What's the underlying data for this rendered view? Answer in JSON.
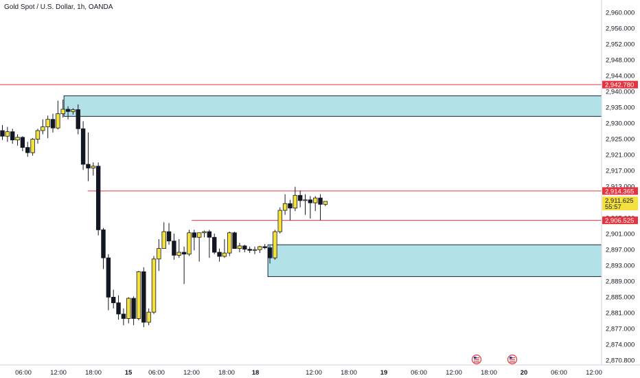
{
  "header": {
    "title": "Gold Spot / U.S. Dollar, 1h, OANDA"
  },
  "colors": {
    "background": "#ffffff",
    "bull_candle": "#f5e13d",
    "bear_candle": "#131722",
    "wick": "#131722",
    "level_line": "#e5333f",
    "zone_fill": "#b2e1e8",
    "zone_border": "#1b2430",
    "axis_text": "#131722",
    "price_label_bg": "#f5e13d"
  },
  "chart_data": {
    "type": "candlestick",
    "title": "Gold Spot / U.S. Dollar, 1h, OANDA",
    "y_axis": {
      "range": [
        2869.0,
        2963.0
      ],
      "ticks": [
        "2,960.000",
        "2,956.000",
        "2,952.000",
        "2,948.000",
        "2,944.000",
        "2,940.000",
        "2,935.000",
        "2,930.000",
        "2,925.000",
        "2,921.000",
        "2,917.000",
        "2,913.000",
        "2,909.000",
        "2,905.000",
        "2,901.000",
        "2,897.000",
        "2,893.000",
        "2,889.000",
        "2,885.000",
        "2,881.000",
        "2,877.000",
        "2,874.000",
        "2,870.800"
      ]
    },
    "x_axis": {
      "ticks": [
        "06:00",
        "12:00",
        "18:00",
        "15",
        "06:00",
        "12:00",
        "18:00",
        "18",
        "12:00",
        "18:00",
        "19",
        "06:00",
        "12:00",
        "18:00",
        "20",
        "06:00",
        "12:00"
      ],
      "bold_ticks": [
        "15",
        "18",
        "19",
        "20"
      ]
    },
    "candles": [
      [
        2930.5,
        2932.0,
        2928.0,
        2929.0
      ],
      [
        2929.0,
        2931.5,
        2927.5,
        2930.2
      ],
      [
        2930.2,
        2931.0,
        2927.0,
        2928.0
      ],
      [
        2928.0,
        2929.5,
        2926.5,
        2928.7
      ],
      [
        2928.7,
        2929.0,
        2925.0,
        2926.0
      ],
      [
        2926.0,
        2927.5,
        2923.5,
        2924.6
      ],
      [
        2924.6,
        2928.5,
        2923.8,
        2928.2
      ],
      [
        2928.2,
        2931.0,
        2927.0,
        2930.5
      ],
      [
        2930.5,
        2933.5,
        2929.5,
        2931.5
      ],
      [
        2931.5,
        2934.5,
        2928.5,
        2933.5
      ],
      [
        2933.5,
        2935.0,
        2930.0,
        2931.2
      ],
      [
        2931.2,
        2938.5,
        2930.8,
        2935.0
      ],
      [
        2935.0,
        2938.8,
        2934.0,
        2936.2
      ],
      [
        2936.2,
        2937.0,
        2933.5,
        2935.6
      ],
      [
        2935.6,
        2936.5,
        2934.8,
        2936.1
      ],
      [
        2936.1,
        2937.5,
        2929.5,
        2931.0
      ],
      [
        2931.0,
        2933.0,
        2920.0,
        2921.5
      ],
      [
        2921.5,
        2930.0,
        2917.0,
        2920.5
      ],
      [
        2920.5,
        2922.0,
        2918.5,
        2921.0
      ],
      [
        2921.0,
        2922.0,
        2902.5,
        2904.0
      ],
      [
        2904.0,
        2904.5,
        2893.5,
        2896.5
      ],
      [
        2896.5,
        2897.5,
        2882.5,
        2886.0
      ],
      [
        2886.0,
        2888.0,
        2883.0,
        2884.5
      ],
      [
        2884.5,
        2886.5,
        2880.0,
        2881.5
      ],
      [
        2881.5,
        2883.0,
        2878.5,
        2880.3
      ],
      [
        2880.3,
        2886.0,
        2879.0,
        2885.7
      ],
      [
        2885.7,
        2886.2,
        2878.5,
        2880.3
      ],
      [
        2880.3,
        2893.0,
        2879.8,
        2892.8
      ],
      [
        2892.8,
        2894.0,
        2878.0,
        2879.3
      ],
      [
        2879.3,
        2883.0,
        2878.5,
        2882.0
      ],
      [
        2882.0,
        2897.0,
        2881.5,
        2896.2
      ],
      [
        2896.2,
        2901.5,
        2893.0,
        2899.0
      ],
      [
        2899.0,
        2906.0,
        2899.0,
        2903.5
      ],
      [
        2903.5,
        2905.8,
        2900.0,
        2901.0
      ],
      [
        2901.0,
        2903.0,
        2896.0,
        2897.2
      ],
      [
        2897.2,
        2901.5,
        2896.5,
        2898.0
      ],
      [
        2898.0,
        2899.5,
        2889.5,
        2897.5
      ],
      [
        2897.5,
        2904.0,
        2897.0,
        2903.2
      ],
      [
        2903.2,
        2904.0,
        2898.5,
        2902.0
      ],
      [
        2902.0,
        2903.0,
        2895.5,
        2903.2
      ],
      [
        2903.2,
        2903.8,
        2902.0,
        2903.5
      ],
      [
        2903.5,
        2904.0,
        2896.5,
        2902.0
      ],
      [
        2902.0,
        2903.0,
        2897.5,
        2898.0
      ],
      [
        2898.0,
        2899.0,
        2895.5,
        2896.9
      ],
      [
        2896.9,
        2901.5,
        2896.5,
        2897.8
      ],
      [
        2897.8,
        2903.5,
        2897.0,
        2903.2
      ],
      [
        2903.2,
        2903.5,
        2899.0,
        2899.0
      ],
      [
        2899.0,
        2900.5,
        2898.0,
        2899.7
      ],
      [
        2899.7,
        2900.0,
        2898.0,
        2898.8
      ],
      [
        2898.8,
        2899.5,
        2897.8,
        2898.5
      ],
      [
        2898.5,
        2899.5,
        2897.5,
        2898.7
      ],
      [
        2898.7,
        2899.7,
        2897.8,
        2899.5
      ],
      [
        2899.5,
        2900.2,
        2898.8,
        2899.2
      ],
      [
        2899.2,
        2899.8,
        2895.0,
        2896.5
      ],
      [
        2896.5,
        2904.0,
        2896.0,
        2903.5
      ],
      [
        2903.5,
        2910.0,
        2903.0,
        2909.2
      ],
      [
        2909.2,
        2913.5,
        2908.0,
        2911.0
      ],
      [
        2911.0,
        2912.0,
        2906.5,
        2909.8
      ],
      [
        2909.8,
        2915.5,
        2909.0,
        2913.2
      ],
      [
        2913.2,
        2914.5,
        2910.0,
        2911.8
      ],
      [
        2911.8,
        2913.5,
        2908.0,
        2912.0
      ],
      [
        2912.0,
        2913.0,
        2907.0,
        2911.2
      ],
      [
        2911.2,
        2913.0,
        2909.0,
        2912.5
      ],
      [
        2912.5,
        2913.5,
        2906.5,
        2910.8
      ],
      [
        2910.8,
        2911.5,
        2910.3,
        2911.6
      ]
    ],
    "horizontal_levels": [
      {
        "value": 2942.78,
        "label": "2,942.780"
      },
      {
        "value": 2914.365,
        "label": "2,914.365"
      },
      {
        "value": 2906.525,
        "label": "2,906.525"
      }
    ],
    "zones": [
      {
        "top": 2939.8,
        "bottom": 2934.3
      },
      {
        "top": 2900.0,
        "bottom": 2891.5
      }
    ],
    "current_price": {
      "value": 2911.625,
      "label": "2,911.625",
      "countdown": "55:57"
    },
    "event_markers": [
      "us-flag-icon",
      "us-flag-icon"
    ]
  }
}
